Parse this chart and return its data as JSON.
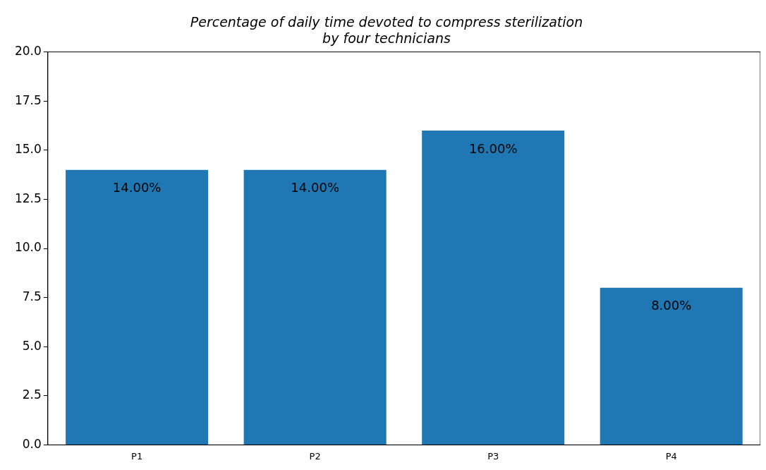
{
  "chart_data": {
    "type": "bar",
    "title": "Percentage of daily time devoted to compress sterilization\nby four technicians",
    "categories": [
      "P1",
      "P2",
      "P3",
      "P4"
    ],
    "values": [
      14,
      14,
      16,
      8
    ],
    "value_labels": [
      "14.00%",
      "14.00%",
      "16.00%",
      "8.00%"
    ],
    "color": "#1f77b4",
    "ylim": [
      0,
      20
    ],
    "yticks": [
      {
        "value": 0,
        "label": "0.0"
      },
      {
        "value": 2.5,
        "label": "2.5"
      },
      {
        "value": 5,
        "label": "5.0"
      },
      {
        "value": 7.5,
        "label": "7.5"
      },
      {
        "value": 10,
        "label": "10.0"
      },
      {
        "value": 12.5,
        "label": "12.5"
      },
      {
        "value": 15,
        "label": "15.0"
      },
      {
        "value": 17.5,
        "label": "17.5"
      },
      {
        "value": 20,
        "label": "20.0"
      }
    ],
    "grid": false
  }
}
